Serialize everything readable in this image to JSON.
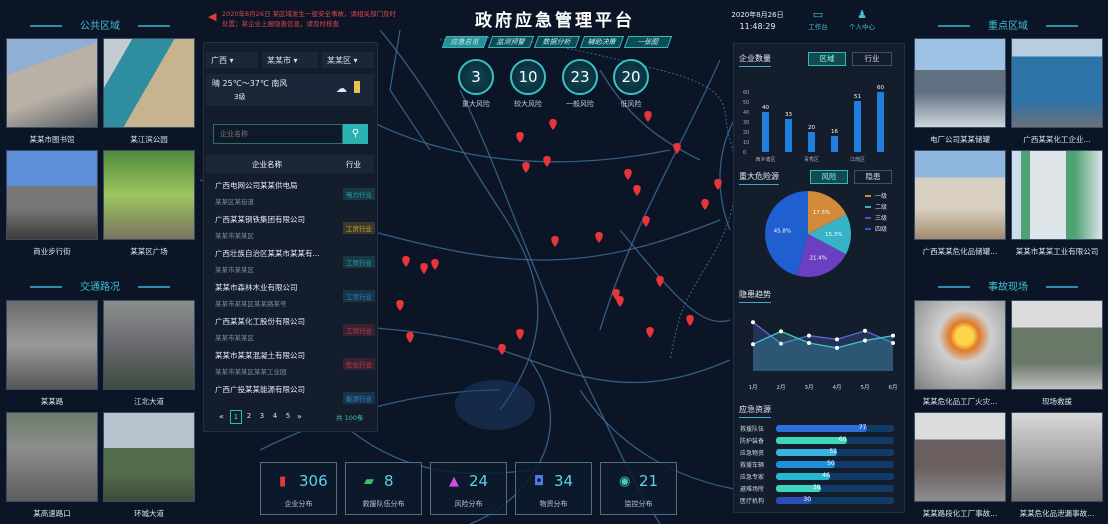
{
  "header": {
    "title": "政府应急管理平台",
    "ticker": "2020年8月26日 某区域发生一般安全事故，请相关部门及时处置；某企业上报隐患信息，请及时核查",
    "date": "2020年8月26日",
    "time": "11:48:29",
    "workbench": "工作台",
    "profile": "个人中心"
  },
  "nav_tabs": [
    "应急总览",
    "监测预警",
    "数据分析",
    "辅助决策",
    "一张图"
  ],
  "risk_circles": [
    {
      "value": "3",
      "label": "重大风险"
    },
    {
      "value": "10",
      "label": "较大风险"
    },
    {
      "value": "23",
      "label": "一般风险"
    },
    {
      "value": "20",
      "label": "低风险"
    }
  ],
  "left_photos": {
    "section1": "公共区域",
    "section2": "交通路况",
    "items": [
      "某某市图书馆",
      "某江滨公园",
      "商业步行街",
      "某某区广场",
      "某某路",
      "江北大道",
      "某高速路口",
      "环城大道"
    ]
  },
  "right_photos": {
    "section1": "重点区域",
    "section2": "事故现场",
    "items": [
      "电厂公司某某储罐",
      "广西某某化工企业...",
      "广西某某危化品储罐...",
      "某某市某某工业有限公司",
      "某某危化品工厂火灾...",
      "现场救援",
      "某某路段化工厂事故...",
      "某某危化品泄漏事故..."
    ]
  },
  "filters": {
    "region": "广西",
    "city": "某某市",
    "district": "某某区",
    "weather": "晴 25℃～37℃ 南风",
    "weather_sub": "3级"
  },
  "search": {
    "placeholder": "企业名称"
  },
  "company_list": {
    "col_name": "企业名称",
    "col_industry": "行业",
    "items": [
      {
        "name": "广西电网公司某某供电局",
        "addr": "某某区某街道",
        "tag": "电力行业",
        "color": "#2aa5a8"
      },
      {
        "name": "广西某某钢铁集团有限公司",
        "addr": "某某市某某区",
        "tag": "工贸行业",
        "color": "#d4a92a"
      },
      {
        "name": "广西壮族自治区某某市某某有...",
        "addr": "某某市某某区",
        "tag": "工贸行业",
        "color": "#2aa5a8"
      },
      {
        "name": "某某市森林木业有限公司",
        "addr": "某某市某某区某某路某号",
        "tag": "工贸行业",
        "color": "#2b8bc7"
      },
      {
        "name": "广西某某化工股份有限公司",
        "addr": "某某市某某区",
        "tag": "工贸行业",
        "color": "#c8374a"
      },
      {
        "name": "某某市某某混凝土有限公司",
        "addr": "某某市某某区某某工业园",
        "tag": "危化行业",
        "color": "#c8374a"
      },
      {
        "name": "广西广投某某能源有限公司",
        "addr": "",
        "tag": "能源行业",
        "color": "#2b8bc7"
      }
    ]
  },
  "pagination": {
    "pages": [
      "1",
      "2",
      "3",
      "4",
      "5"
    ],
    "current": "1",
    "prev": "«",
    "next": "»",
    "total": "共 100条"
  },
  "bottom_stats": [
    {
      "value": "306",
      "label": "企业分布",
      "icon": "building-icon",
      "color": "#e03a3a",
      "glyph": "▮"
    },
    {
      "value": "8",
      "label": "救援队伍分布",
      "icon": "team-icon",
      "color": "#39c46a",
      "glyph": "▰"
    },
    {
      "value": "24",
      "label": "风险分布",
      "icon": "warning-icon",
      "color": "#c94fe0",
      "glyph": "▲"
    },
    {
      "value": "34",
      "label": "物资分布",
      "icon": "supplies-icon",
      "color": "#4f7de6",
      "glyph": "◘"
    },
    {
      "value": "21",
      "label": "监控分布",
      "icon": "camera-icon",
      "color": "#45c9c2",
      "glyph": "◉"
    }
  ],
  "bar_panel": {
    "title": "企业数量",
    "tab_active": "区域",
    "tab_other": "行业"
  },
  "pie_panel": {
    "title": "重大危险源",
    "tab_active": "风险",
    "tab_other": "隐患"
  },
  "line_panel": {
    "title": "隐患趋势"
  },
  "progress_panel": {
    "title": "应急资源"
  },
  "colors": {
    "accent": "#36c3c8",
    "background": "#0b1526",
    "pin": "#e8353b"
  },
  "chart_data": [
    {
      "type": "bar",
      "categories": [
        "某某区",
        "某某区",
        "某某区",
        "某某区",
        "某某区",
        "某某区"
      ],
      "tick_labels": [
        "西乡塘区",
        "",
        "青秀区",
        "",
        "江南区",
        ""
      ],
      "values": [
        40,
        33,
        20,
        16,
        51,
        60
      ],
      "ylim": [
        0,
        70
      ],
      "yticks": [
        0,
        10,
        20,
        30,
        40,
        50,
        60
      ],
      "grid": false
    },
    {
      "type": "pie",
      "legend": [
        "一级",
        "二级",
        "三级",
        "四级"
      ],
      "values": [
        17.5,
        15.3,
        21.4,
        45.8
      ],
      "colors": [
        "#d08a3a",
        "#37b3c9",
        "#6a3fc0",
        "#1f5fd0"
      ],
      "legend_position": "right"
    },
    {
      "type": "area",
      "categories": [
        "1月",
        "2月",
        "3月",
        "4月",
        "5月",
        "6月"
      ],
      "series": [
        {
          "values": [
            34,
            55,
            36,
            28,
            40,
            48
          ],
          "color": "#3fc7c9"
        },
        {
          "values": [
            70,
            35,
            48,
            42,
            56,
            36
          ],
          "color": "#5a6ed6"
        }
      ],
      "ylim": [
        0,
        90
      ]
    },
    {
      "type": "bar",
      "orientation": "horizontal",
      "categories": [
        "救援队伍",
        "防护装备",
        "应急物资",
        "救援车辆",
        "应急专家",
        "避难场所",
        "医疗机构"
      ],
      "values": [
        77,
        60,
        52,
        50,
        46,
        38,
        30
      ],
      "xlim": [
        0,
        100
      ]
    }
  ]
}
